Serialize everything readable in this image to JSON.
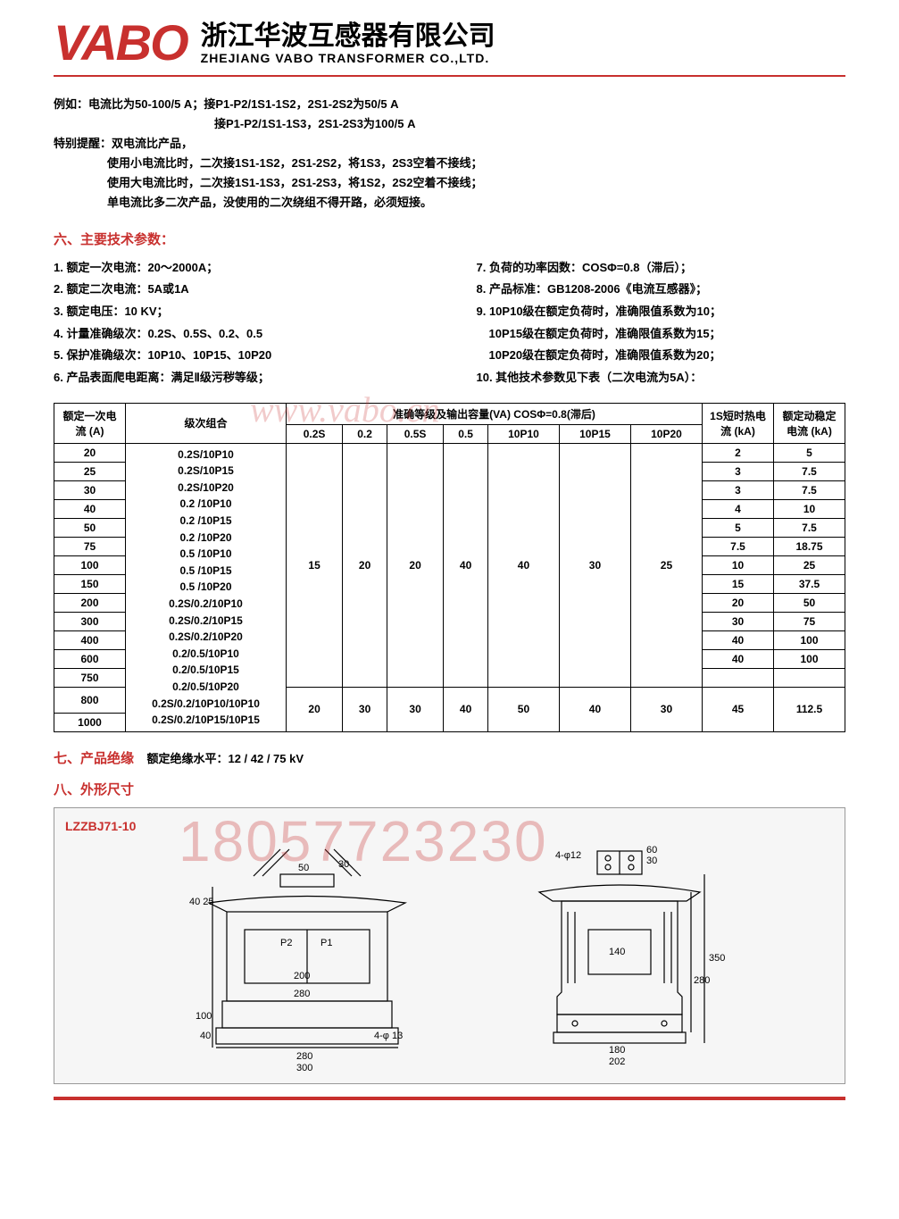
{
  "header": {
    "logo": "VABO",
    "company_cn": "浙江华波互感器有限公司",
    "company_en": "ZHEJIANG VABO TRANSFORMER CO.,LTD."
  },
  "intro": {
    "l1": "例如：电流比为50-100/5 A；接P1-P2/1S1-1S2，2S1-2S2为50/5 A",
    "l2": "接P1-P2/1S1-1S3，2S1-2S3为100/5 A",
    "reminder": "特别提醒：双电流比产品，",
    "l3": "使用小电流比时，二次接1S1-1S2，2S1-2S2，将1S3，2S3空着不接线；",
    "l4": "使用大电流比时，二次接1S1-1S3，2S1-2S3，将1S2，2S2空着不接线；",
    "l5": "单电流比多二次产品，没使用的二次绕组不得开路，必须短接。"
  },
  "section6_title": "六、主要技术参数：",
  "params_left": {
    "p1": "1. 额定一次电流：20～2000A；",
    "p2": "2. 额定二次电流：5A或1A",
    "p3": "3. 额定电压：10 KV；",
    "p4": "4. 计量准确级次：0.2S、0.5S、0.2、0.5",
    "p5": "5. 保护准确级次：10P10、10P15、10P20",
    "p6": "6. 产品表面爬电距离：满足Ⅱ级污秽等级；"
  },
  "params_right": {
    "p7": "7. 负荷的功率因数：COSΦ=0.8（滞后）；",
    "p8": "8. 产品标准：GB1208-2006《电流互感器》；",
    "p9": "9. 10P10级在额定负荷时，准确限值系数为10；",
    "p9a": "   10P15级在额定负荷时，准确限值系数为15；",
    "p9b": "   10P20级在额定负荷时，准确限值系数为20；",
    "p10": "10. 其他技术参数见下表（二次电流为5A）："
  },
  "table": {
    "colors": {
      "border": "#000000",
      "bg": "#ffffff"
    },
    "head": {
      "c1": "额定一次电流 (A)",
      "c2": "级次组合",
      "c3": "准确等级及输出容量(VA)  COSΦ=0.8(滞后)",
      "c4": "1S短时热电流 (kA)",
      "c5": "额定动稳定电流 (kA)"
    },
    "sub": [
      "0.2S",
      "0.2",
      "0.5S",
      "0.5",
      "10P10",
      "10P15",
      "10P20"
    ],
    "group1": {
      "currents": [
        "20",
        "25",
        "30",
        "40",
        "50",
        "75",
        "100",
        "150",
        "200",
        "300",
        "400",
        "600",
        "750"
      ],
      "levels": [
        "0.2S/10P10",
        "0.2S/10P15",
        "0.2S/10P20",
        "0.2 /10P10",
        "0.2 /10P15",
        "0.2 /10P20",
        "0.5 /10P10",
        "0.5 /10P15",
        "0.5 /10P20",
        "0.2S/0.2/10P10",
        "0.2S/0.2/10P15",
        "0.2S/0.2/10P20",
        "0.2/0.5/10P10",
        "0.2/0.5/10P15",
        "0.2/0.5/10P20"
      ],
      "va": [
        "15",
        "20",
        "20",
        "40",
        "40",
        "30",
        "25"
      ],
      "heat": [
        "2",
        "3",
        "3",
        "4",
        "5",
        "7.5",
        "10",
        "15",
        "20",
        "30",
        "40",
        "40",
        ""
      ],
      "dyn": [
        "5",
        "7.5",
        "7.5",
        "10",
        "7.5",
        "18.75",
        "25",
        "37.5",
        "50",
        "75",
        "100",
        "100",
        ""
      ]
    },
    "group2": {
      "currents": [
        "800",
        "1000"
      ],
      "levels": [
        "0.2S/0.2/10P10/10P10",
        "0.2S/0.2/10P15/10P15"
      ],
      "va": [
        "20",
        "30",
        "30",
        "40",
        "50",
        "40",
        "30"
      ],
      "heat": "45",
      "dyn": "112.5"
    }
  },
  "section7": {
    "title": "七、产品绝缘",
    "text": "额定绝缘水平：12 / 42 / 75  kV"
  },
  "section8_title": "八、外形尺寸",
  "drawing": {
    "model": "LZZBJ71-10",
    "front": {
      "dims": {
        "top50": "50",
        "top30": "30",
        "h40_25": "40 25",
        "h100": "100",
        "h40": "40",
        "p_200": "200",
        "inner280": "280",
        "base280": "280",
        "base300": "300",
        "hole": "4-φ 13",
        "P1": "P1",
        "P2": "P2"
      }
    },
    "side": {
      "dims": {
        "hole": "4-φ12",
        "top60": "60",
        "top30": "30",
        "h350": "350",
        "h280": "280",
        "inner140": "140",
        "base180": "180",
        "base202": "202"
      }
    }
  },
  "watermarks": {
    "url": "www.vabo.cn",
    "phone": "18057723230"
  }
}
